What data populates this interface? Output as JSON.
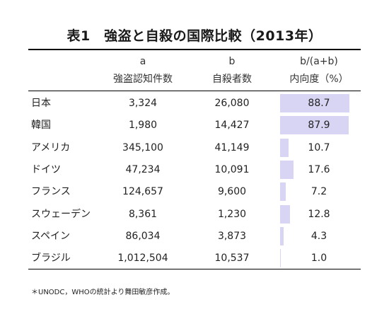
{
  "title": "表1　強盗と自殺の国際比較（2013年）",
  "headers": {
    "col_a_letter": "a",
    "col_a_name": "強盗認知件数",
    "col_b_letter": "b",
    "col_b_name": "自殺者数",
    "col_r_formula": "b/(a+b)",
    "col_r_name": "内向度（%）"
  },
  "rows": [
    {
      "country": "日本",
      "a": "3,324",
      "b": "26,080",
      "ratio": "88.7",
      "ratio_value": 88.7
    },
    {
      "country": "韓国",
      "a": "1,980",
      "b": "14,427",
      "ratio": "87.9",
      "ratio_value": 87.9
    },
    {
      "country": "アメリカ",
      "a": "345,100",
      "b": "41,149",
      "ratio": "10.7",
      "ratio_value": 10.7
    },
    {
      "country": "ドイツ",
      "a": "47,234",
      "b": "10,091",
      "ratio": "17.6",
      "ratio_value": 17.6
    },
    {
      "country": "フランス",
      "a": "124,657",
      "b": "9,600",
      "ratio": "7.2",
      "ratio_value": 7.2
    },
    {
      "country": "スウェーデン",
      "a": "8,361",
      "b": "1,230",
      "ratio": "12.8",
      "ratio_value": 12.8
    },
    {
      "country": "スペイン",
      "a": "86,034",
      "b": "3,873",
      "ratio": "4.3",
      "ratio_value": 4.3
    },
    {
      "country": "ブラジル",
      "a": "1,012,504",
      "b": "10,537",
      "ratio": "1.0",
      "ratio_value": 1.0
    }
  ],
  "note": "＊UNODC，WHOの統計より舞田敏彦作成。",
  "colors": {
    "bar": "#d7d5f3",
    "rule": "#000000"
  }
}
